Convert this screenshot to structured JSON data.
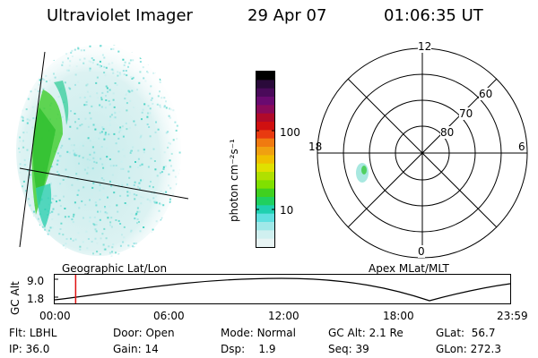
{
  "header": {
    "title": "Ultraviolet Imager",
    "date": "29 Apr 07",
    "time": "01:06:35 UT"
  },
  "colorbar": {
    "unit_label": "photon cm⁻²s⁻¹",
    "ticks": [
      "100",
      "10"
    ],
    "colors": [
      "#000000",
      "#2a0a3a",
      "#4a0a5a",
      "#6a0a70",
      "#8a0a5a",
      "#b00a2a",
      "#d01010",
      "#e83a10",
      "#f07a10",
      "#f0a010",
      "#f0c000",
      "#e0e000",
      "#b0e000",
      "#80e000",
      "#40d020",
      "#20d060",
      "#20d0b0",
      "#60e0e0",
      "#a0e8e8",
      "#d0f0f0",
      "#e8f4f4"
    ]
  },
  "polar": {
    "mlt_labels": {
      "top": "12",
      "left": "18",
      "right": "6",
      "bottom": "0"
    },
    "lat_labels": [
      "60",
      "70",
      "80"
    ]
  },
  "timeline": {
    "ylabel": "GC Alt",
    "ymax": "9.0",
    "ymin": "1.8",
    "left_title": "Geographic Lat/Lon",
    "right_title": "Apex MLat/MLT",
    "time_ticks": [
      "00:00",
      "06:00",
      "12:00",
      "18:00",
      "23:59"
    ],
    "cursor_fraction": 0.046,
    "colors": {
      "cursor": "#e01010"
    }
  },
  "info": {
    "filter_label": "Flt:",
    "filter": "LBHL",
    "ip_label": "IP:",
    "ip": "36.0",
    "door_label": "Door:",
    "door": "Open",
    "gain_label": "Gain:",
    "gain": "14",
    "mode_label": "Mode:",
    "mode": "Normal",
    "dsp_label": "Dsp:",
    "dsp": "1.9",
    "gcalt_label": "GC Alt:",
    "gcalt": "2.1 Re",
    "seq_label": "Seq:",
    "seq": "39",
    "glat_label": "GLat:",
    "glat": "56.7",
    "glon_label": "GLon:",
    "glon": "272.3"
  }
}
